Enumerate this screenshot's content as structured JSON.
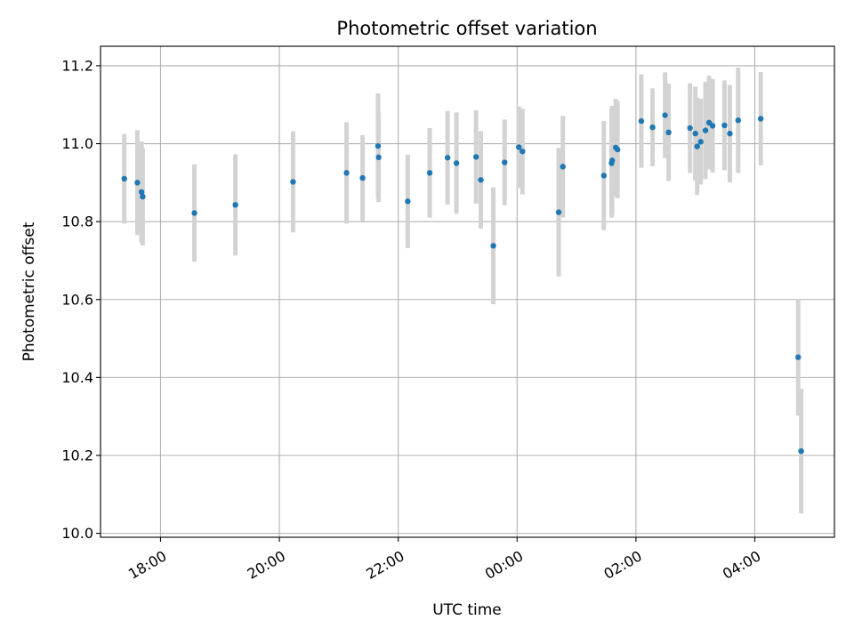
{
  "chart_data": {
    "type": "scatter",
    "title": "Photometric offset variation",
    "xlabel": "UTC time",
    "ylabel": "Photometric offset",
    "x_unit": "hours since 00:00 UTC",
    "xlim": [
      -7.01,
      5.34
    ],
    "ylim": [
      9.99,
      11.25
    ],
    "grid": true,
    "x_ticks": [
      {
        "value": -6,
        "label": "18:00"
      },
      {
        "value": -4,
        "label": "20:00"
      },
      {
        "value": -2,
        "label": "22:00"
      },
      {
        "value": 0,
        "label": "00:00"
      },
      {
        "value": 2,
        "label": "02:00"
      },
      {
        "value": 4,
        "label": "04:00"
      }
    ],
    "y_ticks": [
      {
        "value": 10.0,
        "label": "10.0"
      },
      {
        "value": 10.2,
        "label": "10.2"
      },
      {
        "value": 10.4,
        "label": "10.4"
      },
      {
        "value": 10.6,
        "label": "10.6"
      },
      {
        "value": 10.8,
        "label": "10.8"
      },
      {
        "value": 11.0,
        "label": "11.0"
      },
      {
        "value": 11.2,
        "label": "11.2"
      }
    ],
    "colors": {
      "marker": "#1f77b4",
      "error_bar": "#d3d3d3",
      "grid": "#b0b0b0"
    },
    "points": [
      {
        "x": -6.61,
        "y": 10.91,
        "err": 0.115
      },
      {
        "x": -6.39,
        "y": 10.9,
        "err": 0.135
      },
      {
        "x": -6.32,
        "y": 10.876,
        "err": 0.13
      },
      {
        "x": -6.3,
        "y": 10.864,
        "err": 0.125
      },
      {
        "x": -5.43,
        "y": 10.822,
        "err": 0.125
      },
      {
        "x": -4.74,
        "y": 10.843,
        "err": 0.13
      },
      {
        "x": -3.77,
        "y": 10.902,
        "err": 0.13
      },
      {
        "x": -2.87,
        "y": 10.925,
        "err": 0.13
      },
      {
        "x": -2.6,
        "y": 10.912,
        "err": 0.11
      },
      {
        "x": -2.34,
        "y": 10.994,
        "err": 0.135
      },
      {
        "x": -2.33,
        "y": 10.965,
        "err": 0.115
      },
      {
        "x": -1.84,
        "y": 10.852,
        "err": 0.12
      },
      {
        "x": -1.47,
        "y": 10.925,
        "err": 0.115
      },
      {
        "x": -1.17,
        "y": 10.964,
        "err": 0.12
      },
      {
        "x": -1.02,
        "y": 10.95,
        "err": 0.13
      },
      {
        "x": -0.69,
        "y": 10.966,
        "err": 0.12
      },
      {
        "x": -0.61,
        "y": 10.907,
        "err": 0.125
      },
      {
        "x": -0.4,
        "y": 10.738,
        "err": 0.15
      },
      {
        "x": -0.21,
        "y": 10.952,
        "err": 0.11
      },
      {
        "x": 0.03,
        "y": 10.991,
        "err": 0.105
      },
      {
        "x": 0.09,
        "y": 10.98,
        "err": 0.11
      },
      {
        "x": 0.7,
        "y": 10.824,
        "err": 0.165
      },
      {
        "x": 0.77,
        "y": 10.941,
        "err": 0.13
      },
      {
        "x": 1.46,
        "y": 10.918,
        "err": 0.14
      },
      {
        "x": 1.59,
        "y": 10.95,
        "err": 0.14
      },
      {
        "x": 1.6,
        "y": 10.957,
        "err": 0.14
      },
      {
        "x": 1.66,
        "y": 10.99,
        "err": 0.125
      },
      {
        "x": 1.69,
        "y": 10.985,
        "err": 0.125
      },
      {
        "x": 2.09,
        "y": 11.058,
        "err": 0.12
      },
      {
        "x": 2.28,
        "y": 11.042,
        "err": 0.1
      },
      {
        "x": 2.49,
        "y": 11.073,
        "err": 0.11
      },
      {
        "x": 2.55,
        "y": 11.029,
        "err": 0.125
      },
      {
        "x": 2.91,
        "y": 11.04,
        "err": 0.115
      },
      {
        "x": 3.0,
        "y": 11.026,
        "err": 0.12
      },
      {
        "x": 3.03,
        "y": 10.993,
        "err": 0.125
      },
      {
        "x": 3.09,
        "y": 11.005,
        "err": 0.11
      },
      {
        "x": 3.17,
        "y": 11.034,
        "err": 0.125
      },
      {
        "x": 3.23,
        "y": 11.054,
        "err": 0.12
      },
      {
        "x": 3.29,
        "y": 11.046,
        "err": 0.12
      },
      {
        "x": 3.49,
        "y": 11.047,
        "err": 0.115
      },
      {
        "x": 3.58,
        "y": 11.026,
        "err": 0.125
      },
      {
        "x": 3.72,
        "y": 11.06,
        "err": 0.135
      },
      {
        "x": 4.1,
        "y": 11.064,
        "err": 0.12
      },
      {
        "x": 4.73,
        "y": 10.452,
        "err": 0.15
      },
      {
        "x": 4.78,
        "y": 10.211,
        "err": 0.16
      }
    ]
  }
}
